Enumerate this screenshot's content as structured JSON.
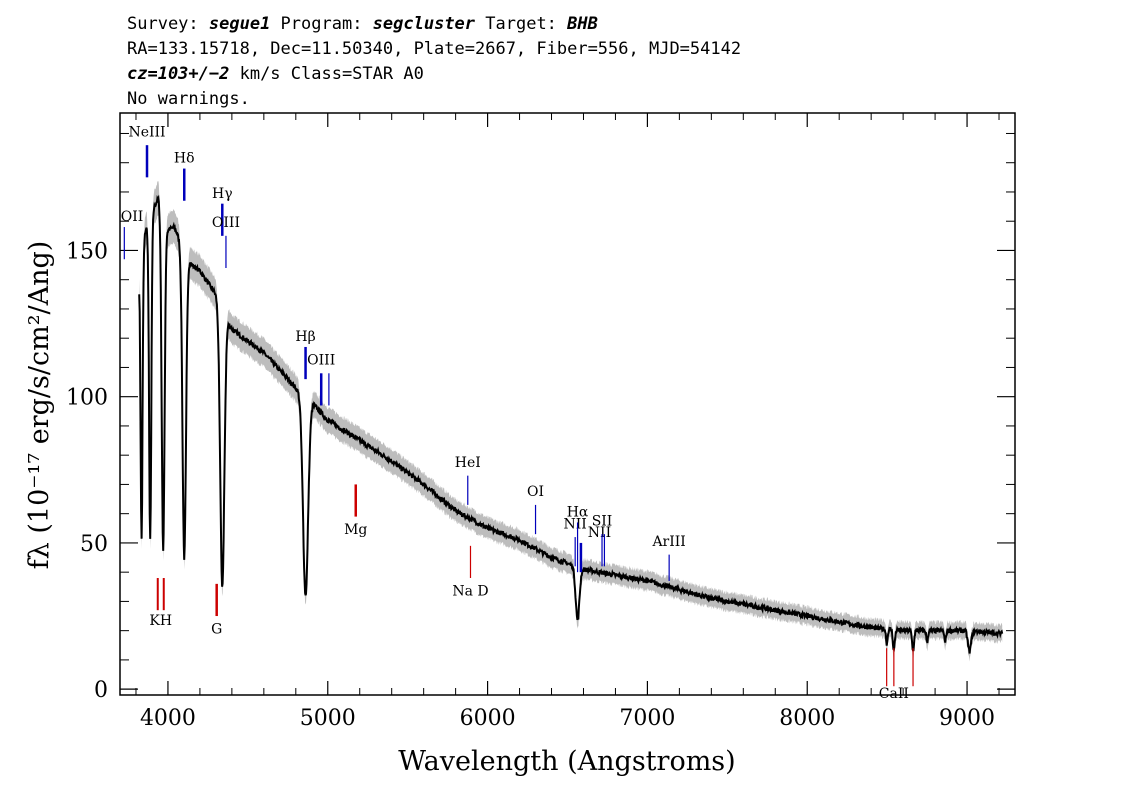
{
  "header": {
    "line1": {
      "survey_label": "Survey: ",
      "survey": "segue1",
      "program_label": " Program: ",
      "program": "segcluster",
      "target_label": " Target: ",
      "target": "BHB"
    },
    "line2": "RA=133.15718, Dec=11.50340, Plate=2667, Fiber=556, MJD=54142",
    "line3": {
      "cz_label": "cz=103+/−2",
      "rest": " km/s Class=STAR A0"
    },
    "line4": "No warnings."
  },
  "colors": {
    "flux": "#000000",
    "error_band": "#bdbdbd",
    "emission": "#0000bb",
    "absorption": "#cc0000"
  },
  "chart_data": {
    "type": "line",
    "title": "",
    "xlabel": "Wavelength (Angstroms)",
    "ylabel": "fλ (10⁻¹⁷ erg/s/cm²/Ang)",
    "xlim": [
      3700,
      9300
    ],
    "ylim": [
      -2,
      197
    ],
    "xticks": [
      4000,
      5000,
      6000,
      7000,
      8000,
      9000
    ],
    "yticks": [
      0,
      50,
      100,
      150
    ],
    "grid": false,
    "legend": "none",
    "continuum": {
      "x": [
        3820,
        3860,
        3900,
        3940,
        4000,
        4040,
        4100,
        4150,
        4200,
        4300,
        4400,
        4500,
        4600,
        4700,
        4800,
        4900,
        5000,
        5200,
        5400,
        5600,
        5800,
        6000,
        6200,
        6400,
        6600,
        6800,
        7000,
        7200,
        7400,
        7600,
        7800,
        8000,
        8200,
        8400,
        8600,
        8800,
        9000,
        9220
      ],
      "y": [
        140,
        157,
        163,
        168,
        157,
        158,
        150,
        145,
        143,
        135,
        123,
        119,
        115,
        109,
        103,
        98,
        92,
        85,
        78,
        70,
        61,
        55,
        51,
        45,
        41,
        39,
        37,
        34,
        31,
        29,
        27,
        25,
        23,
        21,
        20,
        20,
        20,
        19
      ]
    },
    "absorption_dips": [
      {
        "center": 3835,
        "depth": 95,
        "width": 6
      },
      {
        "center": 3889,
        "depth": 110,
        "width": 7
      },
      {
        "center": 3970,
        "depth": 115,
        "width": 9
      },
      {
        "center": 4102,
        "depth": 105,
        "width": 11
      },
      {
        "center": 4340,
        "depth": 95,
        "width": 13
      },
      {
        "center": 4861,
        "depth": 68,
        "width": 16
      },
      {
        "center": 6563,
        "depth": 18,
        "width": 12
      },
      {
        "center": 8498,
        "depth": 5,
        "width": 5
      },
      {
        "center": 8542,
        "depth": 7,
        "width": 6
      },
      {
        "center": 8662,
        "depth": 7,
        "width": 6
      },
      {
        "center": 8750,
        "depth": 4,
        "width": 5
      },
      {
        "center": 8863,
        "depth": 4,
        "width": 5
      },
      {
        "center": 9015,
        "depth": 7,
        "width": 10
      }
    ],
    "line_markers": [
      {
        "label": "NeIII",
        "x": 3869,
        "y_top": 186,
        "y_bot": 175,
        "label_y": 189,
        "color": "emission",
        "weight": "thick"
      },
      {
        "label": "Hδ",
        "x": 4102,
        "y_top": 178,
        "y_bot": 167,
        "label_y": 180,
        "color": "emission",
        "weight": "thick"
      },
      {
        "label": "Hγ",
        "x": 4340,
        "y_top": 166,
        "y_bot": 155,
        "label_y": 168,
        "color": "emission",
        "weight": "thick"
      },
      {
        "label": "OIII",
        "x": 4363,
        "y_top": 155,
        "y_bot": 144,
        "label_y": 158,
        "color": "emission",
        "weight": "thin"
      },
      {
        "label": "OII",
        "x": 3727,
        "y_top": 158,
        "y_bot": 147,
        "label_y": 160,
        "color": "emission",
        "weight": "thin"
      },
      {
        "label": "Hβ",
        "x": 4861,
        "y_top": 117,
        "y_bot": 106,
        "label_y": 119,
        "color": "emission",
        "weight": "thick"
      },
      {
        "label": "OIII",
        "x": 4959,
        "y_top": 108,
        "y_bot": 97,
        "label_y": 111,
        "color": "emission",
        "weight": "thick"
      },
      {
        "label": "",
        "x": 5007,
        "y_top": 108,
        "y_bot": 97,
        "label_y": 0,
        "color": "emission",
        "weight": "thin"
      },
      {
        "label": "HeI",
        "x": 5876,
        "y_top": 73,
        "y_bot": 63,
        "label_y": 76,
        "color": "emission",
        "weight": "thin"
      },
      {
        "label": "OI",
        "x": 6300,
        "y_top": 63,
        "y_bot": 53,
        "label_y": 66,
        "color": "emission",
        "weight": "thin"
      },
      {
        "label": "NII",
        "x": 6548,
        "y_top": 52,
        "y_bot": 42,
        "label_y": 55,
        "color": "emission",
        "weight": "thin"
      },
      {
        "label": "Hα",
        "x": 6563,
        "y_top": 57,
        "y_bot": 40,
        "label_y": 59,
        "color": "emission",
        "weight": "thin"
      },
      {
        "label": "",
        "x": 6584,
        "y_top": 50,
        "y_bot": 40,
        "label_y": 0,
        "color": "emission",
        "weight": "thick"
      },
      {
        "label": "NII",
        "x": 6700,
        "y_top": 0,
        "y_bot": 0,
        "label_y": 52,
        "color": "emission",
        "weight": "none"
      },
      {
        "label": "SII",
        "x": 6716,
        "y_top": 53,
        "y_bot": 42,
        "label_y": 56,
        "color": "emission",
        "weight": "thin"
      },
      {
        "label": "",
        "x": 6731,
        "y_top": 53,
        "y_bot": 42,
        "label_y": 0,
        "color": "emission",
        "weight": "thin"
      },
      {
        "label": "ArIII",
        "x": 7136,
        "y_top": 46,
        "y_bot": 37,
        "label_y": 49,
        "color": "emission",
        "weight": "thin"
      },
      {
        "label": "Mg",
        "x": 5175,
        "y_top": 70,
        "y_bot": 59,
        "label_y": 53,
        "color": "absorption",
        "weight": "thick"
      },
      {
        "label": "Na D",
        "x": 5893,
        "y_top": 49,
        "y_bot": 38,
        "label_y": 32,
        "color": "absorption",
        "weight": "thin"
      },
      {
        "label": "KH",
        "x": 3955,
        "y_top": 38,
        "y_bot": 27,
        "label_y": 22,
        "color": "absorption",
        "weight": "pair"
      },
      {
        "label": "G",
        "x": 4305,
        "y_top": 36,
        "y_bot": 25,
        "label_y": 19,
        "color": "absorption",
        "weight": "thick"
      },
      {
        "label": "CaII",
        "x": 8542,
        "y_top": 14,
        "y_bot": 1,
        "label_y": -3,
        "color": "absorption",
        "weight": "triple"
      }
    ]
  }
}
